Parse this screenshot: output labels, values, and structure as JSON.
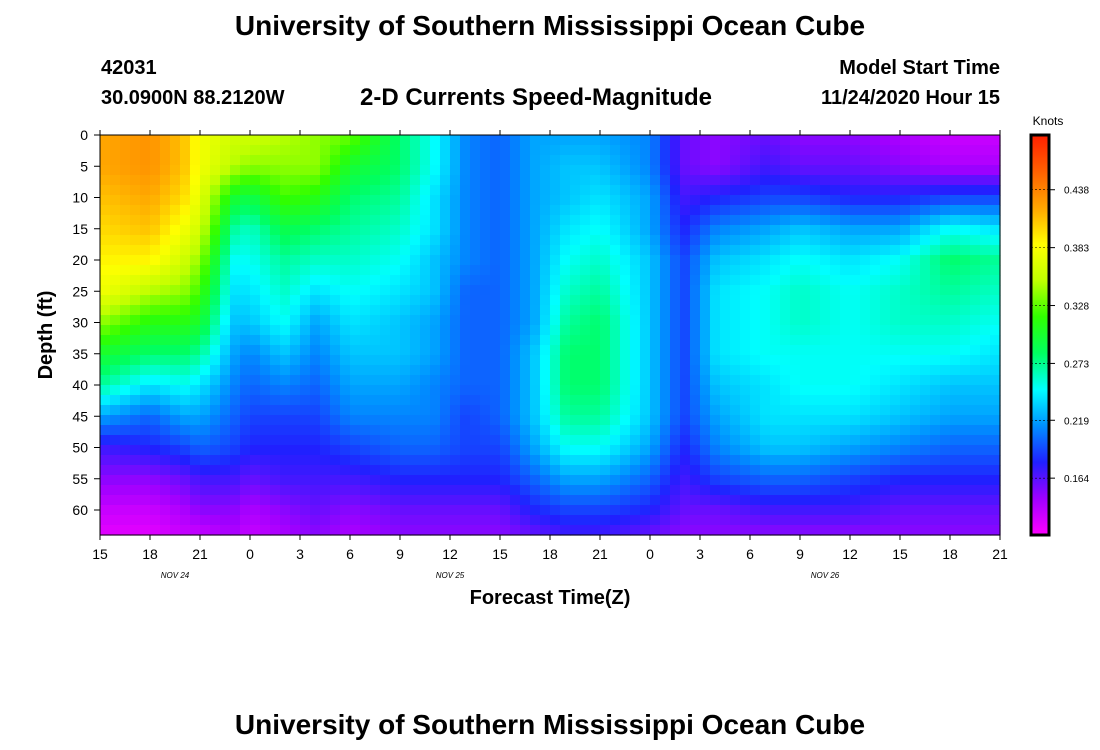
{
  "header": {
    "title": "University of Southern Mississippi Ocean Cube",
    "station_id": "42031",
    "coords": "30.0900N 88.2120W",
    "subtitle": "2-D Currents Speed-Magnitude",
    "model_label": "Model Start Time",
    "model_time": "11/24/2020 Hour 15"
  },
  "footer": {
    "title": "University of Southern Mississippi Ocean Cube"
  },
  "chart_data": {
    "type": "heatmap",
    "title": "2-D Currents Speed-Magnitude",
    "xlabel": "Forecast Time(Z)",
    "ylabel": "Depth (ft)",
    "x_unit": "hours since 11/24/2020 15Z",
    "xlim": [
      0,
      54
    ],
    "ylim": [
      0,
      64
    ],
    "y_ticks": [
      0,
      5,
      10,
      15,
      20,
      25,
      30,
      35,
      40,
      45,
      50,
      55,
      60
    ],
    "x_ticks": [
      {
        "hour": 0,
        "label": "15"
      },
      {
        "hour": 3,
        "label": "18"
      },
      {
        "hour": 6,
        "label": "21"
      },
      {
        "hour": 9,
        "label": "0"
      },
      {
        "hour": 12,
        "label": "3"
      },
      {
        "hour": 15,
        "label": "6"
      },
      {
        "hour": 18,
        "label": "9"
      },
      {
        "hour": 21,
        "label": "12"
      },
      {
        "hour": 24,
        "label": "15"
      },
      {
        "hour": 27,
        "label": "18"
      },
      {
        "hour": 30,
        "label": "21"
      },
      {
        "hour": 33,
        "label": "0"
      },
      {
        "hour": 36,
        "label": "3"
      },
      {
        "hour": 39,
        "label": "6"
      },
      {
        "hour": 42,
        "label": "9"
      },
      {
        "hour": 45,
        "label": "12"
      },
      {
        "hour": 48,
        "label": "15"
      },
      {
        "hour": 51,
        "label": "18"
      },
      {
        "hour": 54,
        "label": "21"
      }
    ],
    "date_labels": [
      {
        "hour": 4.5,
        "label": "NOV  24"
      },
      {
        "hour": 21,
        "label": "NOV  25"
      },
      {
        "hour": 43.5,
        "label": "NOV  26"
      }
    ],
    "colorbar": {
      "label": "Knots",
      "range": [
        0.11,
        0.49
      ],
      "ticks": [
        0.438,
        0.383,
        0.328,
        0.273,
        0.219,
        0.164
      ],
      "tick_labels": [
        "0.438",
        "0.383",
        "0.328",
        "0.273",
        "0.219",
        "0.164"
      ],
      "colors": [
        "#ff00ff",
        "#a000ff",
        "#2020ff",
        "#0090ff",
        "#00ffff",
        "#00ff60",
        "#30ff00",
        "#c0ff00",
        "#ffff00",
        "#ffa500",
        "#ff6000",
        "#ff2000"
      ]
    },
    "series_depth_profiles": {
      "depth_rows_ft": [
        0,
        5,
        10,
        15,
        20,
        25,
        30,
        35,
        40,
        45,
        50,
        55,
        60,
        64
      ],
      "columns": [
        {
          "hour": 0,
          "values": [
            0.42,
            0.42,
            0.41,
            0.4,
            0.39,
            0.38,
            0.34,
            0.3,
            0.27,
            0.22,
            0.17,
            0.15,
            0.13,
            0.12
          ]
        },
        {
          "hour": 3,
          "values": [
            0.43,
            0.43,
            0.42,
            0.41,
            0.39,
            0.35,
            0.31,
            0.28,
            0.24,
            0.2,
            0.18,
            0.15,
            0.13,
            0.12
          ]
        },
        {
          "hour": 5,
          "values": [
            0.41,
            0.41,
            0.4,
            0.38,
            0.36,
            0.34,
            0.31,
            0.28,
            0.25,
            0.22,
            0.19,
            0.16,
            0.14,
            0.13
          ]
        },
        {
          "hour": 6,
          "values": [
            0.38,
            0.38,
            0.37,
            0.36,
            0.34,
            0.32,
            0.3,
            0.27,
            0.24,
            0.22,
            0.2,
            0.17,
            0.15,
            0.13
          ]
        },
        {
          "hour": 8,
          "values": [
            0.36,
            0.35,
            0.3,
            0.27,
            0.25,
            0.24,
            0.23,
            0.22,
            0.21,
            0.2,
            0.19,
            0.17,
            0.15,
            0.14
          ]
        },
        {
          "hour": 9,
          "values": [
            0.36,
            0.34,
            0.29,
            0.26,
            0.25,
            0.24,
            0.23,
            0.21,
            0.2,
            0.19,
            0.18,
            0.16,
            0.14,
            0.13
          ]
        },
        {
          "hour": 11,
          "values": [
            0.35,
            0.34,
            0.32,
            0.29,
            0.27,
            0.26,
            0.25,
            0.23,
            0.21,
            0.19,
            0.18,
            0.17,
            0.15,
            0.14
          ]
        },
        {
          "hour": 13,
          "values": [
            0.34,
            0.34,
            0.31,
            0.28,
            0.26,
            0.24,
            0.22,
            0.21,
            0.2,
            0.19,
            0.18,
            0.17,
            0.16,
            0.15
          ]
        },
        {
          "hour": 15,
          "values": [
            0.33,
            0.3,
            0.28,
            0.27,
            0.26,
            0.25,
            0.24,
            0.23,
            0.22,
            0.21,
            0.19,
            0.17,
            0.15,
            0.14
          ]
        },
        {
          "hour": 18,
          "values": [
            0.28,
            0.28,
            0.27,
            0.26,
            0.25,
            0.24,
            0.23,
            0.23,
            0.22,
            0.21,
            0.2,
            0.18,
            0.16,
            0.15
          ]
        },
        {
          "hour": 20,
          "values": [
            0.25,
            0.25,
            0.24,
            0.24,
            0.23,
            0.23,
            0.22,
            0.22,
            0.21,
            0.21,
            0.2,
            0.18,
            0.16,
            0.15
          ]
        },
        {
          "hour": 22,
          "values": [
            0.21,
            0.21,
            0.21,
            0.21,
            0.21,
            0.2,
            0.2,
            0.2,
            0.2,
            0.19,
            0.19,
            0.18,
            0.16,
            0.15
          ]
        },
        {
          "hour": 24,
          "values": [
            0.2,
            0.2,
            0.2,
            0.2,
            0.2,
            0.2,
            0.2,
            0.2,
            0.2,
            0.2,
            0.19,
            0.18,
            0.16,
            0.15
          ]
        },
        {
          "hour": 26,
          "values": [
            0.22,
            0.22,
            0.22,
            0.22,
            0.22,
            0.22,
            0.22,
            0.23,
            0.23,
            0.23,
            0.22,
            0.2,
            0.18,
            0.16
          ]
        },
        {
          "hour": 28,
          "values": [
            0.22,
            0.23,
            0.23,
            0.24,
            0.25,
            0.26,
            0.27,
            0.28,
            0.28,
            0.27,
            0.25,
            0.22,
            0.19,
            0.17
          ]
        },
        {
          "hour": 30,
          "values": [
            0.22,
            0.23,
            0.24,
            0.25,
            0.26,
            0.27,
            0.28,
            0.28,
            0.28,
            0.27,
            0.25,
            0.22,
            0.19,
            0.17
          ]
        },
        {
          "hour": 33,
          "values": [
            0.21,
            0.21,
            0.22,
            0.22,
            0.23,
            0.23,
            0.23,
            0.23,
            0.23,
            0.23,
            0.22,
            0.2,
            0.18,
            0.16
          ]
        },
        {
          "hour": 35,
          "values": [
            0.16,
            0.16,
            0.17,
            0.18,
            0.19,
            0.19,
            0.19,
            0.19,
            0.19,
            0.19,
            0.18,
            0.17,
            0.16,
            0.15
          ]
        },
        {
          "hour": 37,
          "values": [
            0.15,
            0.15,
            0.18,
            0.21,
            0.23,
            0.24,
            0.24,
            0.24,
            0.23,
            0.22,
            0.21,
            0.19,
            0.16,
            0.15
          ]
        },
        {
          "hour": 40,
          "values": [
            0.16,
            0.17,
            0.19,
            0.22,
            0.24,
            0.25,
            0.25,
            0.25,
            0.24,
            0.24,
            0.23,
            0.2,
            0.17,
            0.15
          ]
        },
        {
          "hour": 42,
          "values": [
            0.15,
            0.16,
            0.19,
            0.23,
            0.25,
            0.26,
            0.26,
            0.25,
            0.25,
            0.24,
            0.23,
            0.2,
            0.17,
            0.15
          ]
        },
        {
          "hour": 45,
          "values": [
            0.15,
            0.16,
            0.18,
            0.22,
            0.24,
            0.25,
            0.25,
            0.25,
            0.25,
            0.24,
            0.22,
            0.19,
            0.17,
            0.15
          ]
        },
        {
          "hour": 48,
          "values": [
            0.14,
            0.15,
            0.18,
            0.22,
            0.25,
            0.26,
            0.26,
            0.25,
            0.24,
            0.23,
            0.21,
            0.18,
            0.16,
            0.15
          ]
        },
        {
          "hour": 51,
          "values": [
            0.13,
            0.14,
            0.19,
            0.25,
            0.28,
            0.27,
            0.26,
            0.25,
            0.23,
            0.22,
            0.2,
            0.18,
            0.16,
            0.15
          ]
        },
        {
          "hour": 54,
          "values": [
            0.13,
            0.14,
            0.19,
            0.24,
            0.27,
            0.26,
            0.25,
            0.24,
            0.23,
            0.22,
            0.2,
            0.18,
            0.16,
            0.15
          ]
        }
      ]
    }
  }
}
